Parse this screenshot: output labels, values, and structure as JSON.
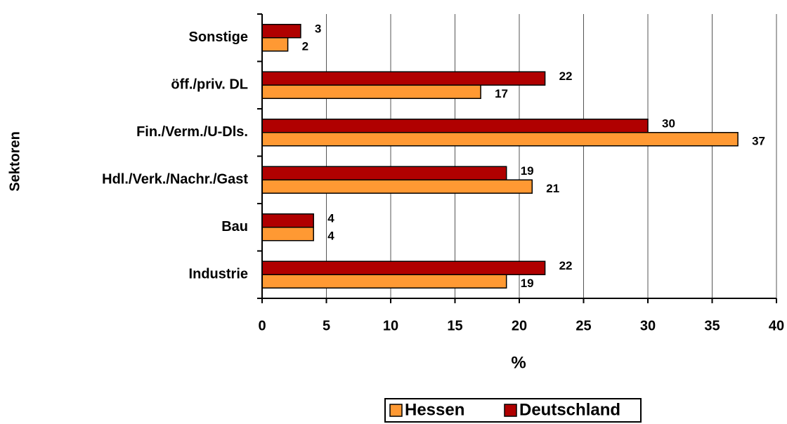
{
  "chart_data": {
    "type": "bar",
    "orientation": "horizontal",
    "y_label": "Sektoren",
    "x_label": "%",
    "categories": [
      "Sonstige",
      "öff./priv. DL",
      "Fin./Verm./U-Dls.",
      "Hdl./Verk./Nachr./Gast",
      "Bau",
      "Industrie"
    ],
    "series": [
      {
        "name": "Hessen",
        "color": "#ff9933",
        "values": [
          2,
          17,
          37,
          21,
          4,
          19
        ]
      },
      {
        "name": "Deutschland",
        "color": "#b00000",
        "values": [
          3,
          22,
          30,
          19,
          4,
          22
        ]
      }
    ],
    "xlim": [
      0,
      40
    ],
    "xticks": [
      0,
      5,
      10,
      15,
      20,
      25,
      30,
      35,
      40
    ],
    "grid": true,
    "legend": "bottom"
  }
}
